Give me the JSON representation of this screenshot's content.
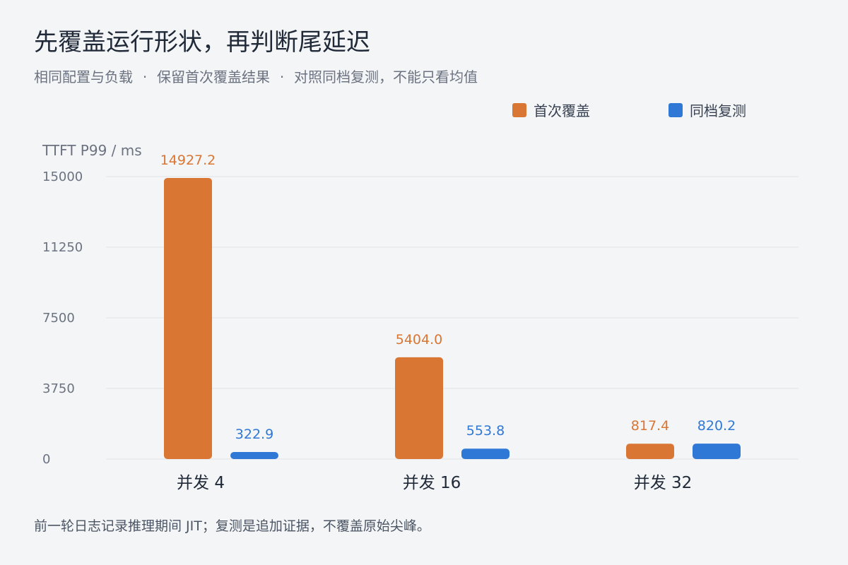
{
  "header": {
    "title": "先覆盖运行形状，再判断尾延迟",
    "subtitle": {
      "part1": "相同配置与负载",
      "part2": "保留首次覆盖结果",
      "part3": "对照同档复测，不能只看均值",
      "separator": "·"
    }
  },
  "footnote": "前一轮日志记录推理期间 JIT；复测是追加证据，不覆盖原始尖峰。",
  "colors": {
    "first": "#d97634",
    "retest": "#2f78d6",
    "grid": "#e1e4e8",
    "axis_text": "#6b7280",
    "category_text": "#1f2937"
  },
  "chart_data": {
    "type": "bar",
    "ylabel": "TTFT P99 / ms",
    "ylim": [
      0,
      15000
    ],
    "yticks": [
      "0",
      "3750",
      "7500",
      "11250",
      "15000"
    ],
    "grid": true,
    "legend": "top-right",
    "categories": [
      "并发 4",
      "并发 16",
      "并发 32"
    ],
    "series": [
      {
        "name": "首次覆盖",
        "values": [
          14927.2,
          5404.0,
          817.4
        ],
        "labels": [
          "14927.2",
          "5404.0",
          "817.4"
        ]
      },
      {
        "name": "同档复测",
        "values": [
          322.9,
          553.8,
          820.2
        ],
        "labels": [
          "322.9",
          "553.8",
          "820.2"
        ]
      }
    ]
  }
}
